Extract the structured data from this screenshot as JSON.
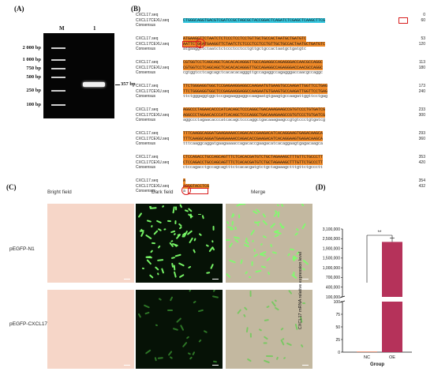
{
  "panels": {
    "a": "(A)",
    "b": "(B)",
    "c": "(C)",
    "d": "(D)"
  },
  "gel": {
    "lane_marker": "M",
    "lane_sample": "1",
    "ladder": [
      "2 000 bp",
      "1 000 bp",
      "750 bp",
      "500 bp",
      "250 bp",
      "100 bp"
    ],
    "band_label": "357 bp"
  },
  "alignment": {
    "names": [
      "CXCL17.seq",
      "CXCL17CEXU.seq",
      "Consensus"
    ],
    "blocks": [
      {
        "s1": "",
        "s2": "CTGGGCAGGTGACGTCGATCCGCTAGCGCTACCGGACTCAGATCTCGAGCTCAAGCTTCG",
        "c": "",
        "n1": "0",
        "n2": "60"
      },
      {
        "s1": "ATGAAGGTTCTAATCTCTCCCTCCTCCTGTTGCTGCCACTAATGCTGATGTC",
        "s2": "AATTCTGCATGAAGGTTCTAATCTCTCCCTCCTCCTGTTGCTGCCACTAATGCTGATGTC",
        "c": "atgaaggttctaatctctccctcctcctgttgctgccactaatgctgatgtc",
        "n1": "53",
        "n2": "120"
      },
      {
        "s1": "CGTGGTCCTCAGCAGCTCACACACAGGGTTGCCAGAGGCCAGAGGGACCAACGCCAGGC",
        "s2": "CGTGGTCCTCAGCAGCTCACACACAGGGTTGCCAGAGGCCAGAGGGACCAACGCCAGGC",
        "c": "cgtggtcctcagcagctcacacacagggttgccagaggccagagggaccaacgccaggc",
        "n1": "113",
        "n2": "180"
      },
      {
        "s1": "TTCTGGGAGGTGGCTCCGAGAAGGAGGCCAAGAATGTGAAGTGCCAAGATTGGTTCCTGAG",
        "s2": "TTCTGGGAGGTGGCTCCGAGAAGGAGGCCAAGAATGTGAAGTGCCAAGATTGGTTCCTGAG",
        "c": "ttctgggaggtggctccgagaaggaggccaagaatgtgaagtgccaagattggttcctgag",
        "n1": "173",
        "n2": "240"
      },
      {
        "s1": "AGGCCCTAGAACACCCATCACAGCTCCCAGGCTGACAAAGAAGCCGTGTCCCTGTGATCG",
        "s2": "AGGCCCTAGAACACCCATCACAGCTCCCAGGCTGACAAAGAAGCCGTGTCCCTGTGATCG",
        "c": "aggccctagaacacccatcacagctcccaggctgacaaagaagccgtgtccctgtgatcg",
        "n1": "233",
        "n2": "300"
      },
      {
        "s1": "TTTCAAGGCAGGATGAAGAAAACCAGACACCGAAGACATCACAGGAAGTGAGACAAGCA",
        "s2": "TTTCAAGGCAGGATGAAGAAAACCAGACACCGAAGACATCACAGGAAGTGAGACAAGCA",
        "c": "tttcaaggcaggatgaagaaaaccagacaccgaagacatcacaggaagtgagacaagca",
        "n1": "293",
        "n2": "360"
      },
      {
        "s1": "CTCCAGACCTGCCAGCAGTTTCTCACACGATGTCTGCTAGAAAGCTTTGTTCTGCCCTT",
        "s2": "CTCCAGACCTGCCAGCAGTTTCTCACACGATGTCTGCTAGAAAGCTTTGTTCTGCCCTT",
        "c": "ctccagacctgccagcagtttctcacacgatgtctgctagaaagctttgttctgccctt",
        "n1": "353",
        "n2": "420"
      },
      {
        "s1": "A",
        "s2": "AGGGTACCTCG",
        "c": "a",
        "n1": "354",
        "n2": "432"
      }
    ]
  },
  "microscopy": {
    "headers": [
      "Bright field",
      "Dark field",
      "Merge"
    ],
    "rows": [
      "pEGFP-N1",
      "pEGFP-CXCL17"
    ]
  },
  "chart_data": {
    "type": "bar",
    "categories": [
      "NC",
      "OE"
    ],
    "values": [
      1,
      2300000
    ],
    "xlabel": "Group",
    "ylabel": "CXCL17 mRNA relative expression level",
    "yticks_lower": [
      "0",
      "25",
      "50",
      "75",
      "100"
    ],
    "yticks_upper": [
      "100,000",
      "400,000",
      "700,000",
      "1,000,000",
      "1,500,000",
      "1,900,000",
      "2,500,000",
      "3,100,000"
    ],
    "significance": "**",
    "colors": {
      "NC": "#e0603a",
      "OE": "#b5325a"
    }
  }
}
